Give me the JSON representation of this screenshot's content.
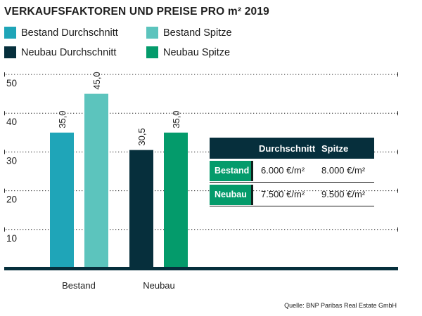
{
  "chart_data": {
    "type": "bar",
    "title": "VERKAUFSFAKTOREN UND PREISE PRO m² 2019",
    "categories": [
      "Bestand",
      "Neubau"
    ],
    "series": [
      {
        "name": "Bestand Durchschnitt",
        "color": "#1fa5b8",
        "category": "Bestand",
        "value": 35.0,
        "label": "35,0"
      },
      {
        "name": "Bestand Spitze",
        "color": "#5cc4bd",
        "category": "Bestand",
        "value": 45.0,
        "label": "45,0"
      },
      {
        "name": "Neubau Durchschnitt",
        "color": "#062f3c",
        "category": "Neubau",
        "value": 30.5,
        "label": "30,5"
      },
      {
        "name": "Neubau Spitze",
        "color": "#049b6b",
        "category": "Neubau",
        "value": 35.0,
        "label": "35,0"
      }
    ],
    "yticks": [
      "10",
      "20",
      "30",
      "40",
      "50"
    ],
    "ylim": [
      0,
      50
    ],
    "grid": true,
    "legend": "top"
  },
  "table": {
    "headers": [
      "",
      "Durchschnitt",
      "Spitze"
    ],
    "rows": [
      {
        "label": "Bestand",
        "durchschnitt": "6.000 €/m²",
        "spitze": "8.000 €/m²"
      },
      {
        "label": "Neubau",
        "durchschnitt": "7.500 €/m²",
        "spitze": "9.500 €/m²"
      }
    ]
  },
  "source": "Quelle: BNP Paribas Real Estate GmbH"
}
